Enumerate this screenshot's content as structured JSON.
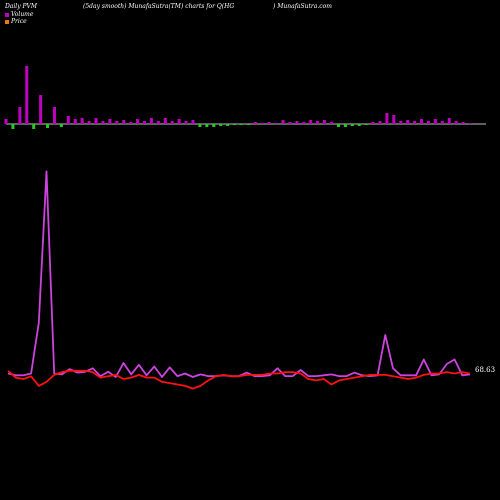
{
  "header": {
    "left": "Daily PVM",
    "middle": "(5day smooth) MunafaSutra(TM) charts for Q(HG",
    "right": ") MunafaSutra.com"
  },
  "legend": {
    "volume": "Volume",
    "price": "Price"
  },
  "colors": {
    "background": "#000000",
    "volume_up": "#c000c0",
    "volume_down": "#22cc22",
    "price_line": "#ff1111",
    "volume_line": "#cc44dd",
    "baseline": "#ffffff"
  },
  "chart_data": {
    "type": "line",
    "title": "(5day smooth) MunafaSutra(TM) charts for Q(HG",
    "last_label": "68.63",
    "volume_bars": [
      {
        "value": 5,
        "dir": "up"
      },
      {
        "value": -5,
        "dir": "down"
      },
      {
        "value": 17,
        "dir": "up"
      },
      {
        "value": 58,
        "dir": "up"
      },
      {
        "value": -5,
        "dir": "down"
      },
      {
        "value": 29,
        "dir": "up"
      },
      {
        "value": -4,
        "dir": "down"
      },
      {
        "value": 17,
        "dir": "up"
      },
      {
        "value": -3,
        "dir": "down"
      },
      {
        "value": 8,
        "dir": "up"
      },
      {
        "value": 5,
        "dir": "up"
      },
      {
        "value": 6,
        "dir": "up"
      },
      {
        "value": 3,
        "dir": "up"
      },
      {
        "value": 6,
        "dir": "up"
      },
      {
        "value": 3,
        "dir": "up"
      },
      {
        "value": 5,
        "dir": "up"
      },
      {
        "value": 3,
        "dir": "up"
      },
      {
        "value": 4,
        "dir": "up"
      },
      {
        "value": 2,
        "dir": "up"
      },
      {
        "value": 5,
        "dir": "up"
      },
      {
        "value": 3,
        "dir": "up"
      },
      {
        "value": 6,
        "dir": "up"
      },
      {
        "value": 3,
        "dir": "up"
      },
      {
        "value": 6,
        "dir": "up"
      },
      {
        "value": 3,
        "dir": "up"
      },
      {
        "value": 5,
        "dir": "up"
      },
      {
        "value": 3,
        "dir": "up"
      },
      {
        "value": 4,
        "dir": "up"
      },
      {
        "value": -3,
        "dir": "down"
      },
      {
        "value": -3,
        "dir": "down"
      },
      {
        "value": -3,
        "dir": "down"
      },
      {
        "value": -2,
        "dir": "down"
      },
      {
        "value": -2,
        "dir": "down"
      },
      {
        "value": -1,
        "dir": "down"
      },
      {
        "value": -1,
        "dir": "down"
      },
      {
        "value": -1,
        "dir": "down"
      },
      {
        "value": 2,
        "dir": "up"
      },
      {
        "value": 1,
        "dir": "up"
      },
      {
        "value": 2,
        "dir": "up"
      },
      {
        "value": 1,
        "dir": "up"
      },
      {
        "value": 4,
        "dir": "up"
      },
      {
        "value": 2,
        "dir": "up"
      },
      {
        "value": 3,
        "dir": "up"
      },
      {
        "value": 2,
        "dir": "up"
      },
      {
        "value": 4,
        "dir": "up"
      },
      {
        "value": 3,
        "dir": "up"
      },
      {
        "value": 4,
        "dir": "up"
      },
      {
        "value": 2,
        "dir": "up"
      },
      {
        "value": -3,
        "dir": "down"
      },
      {
        "value": -3,
        "dir": "down"
      },
      {
        "value": -2,
        "dir": "down"
      },
      {
        "value": -2,
        "dir": "down"
      },
      {
        "value": -1,
        "dir": "down"
      },
      {
        "value": 2,
        "dir": "up"
      },
      {
        "value": 3,
        "dir": "up"
      },
      {
        "value": 11,
        "dir": "up"
      },
      {
        "value": 9,
        "dir": "up"
      },
      {
        "value": 3,
        "dir": "up"
      },
      {
        "value": 4,
        "dir": "up"
      },
      {
        "value": 3,
        "dir": "up"
      },
      {
        "value": 5,
        "dir": "up"
      },
      {
        "value": 3,
        "dir": "up"
      },
      {
        "value": 5,
        "dir": "up"
      },
      {
        "value": 3,
        "dir": "up"
      },
      {
        "value": 6,
        "dir": "up"
      },
      {
        "value": 3,
        "dir": "up"
      },
      {
        "value": 2,
        "dir": "up"
      },
      {
        "value": 1,
        "dir": "up"
      }
    ],
    "volume_line": [
      4,
      2,
      2,
      4,
      62,
      235,
      4,
      3,
      9,
      5,
      6,
      10,
      1,
      6,
      0,
      16,
      3,
      14,
      2,
      12,
      0,
      11,
      1,
      4,
      0,
      3,
      1,
      1,
      2,
      1,
      1,
      5,
      1,
      1,
      2,
      10,
      1,
      1,
      8,
      1,
      1,
      2,
      3,
      1,
      1,
      5,
      2,
      1,
      2,
      48,
      10,
      2,
      2,
      2,
      20,
      2,
      3,
      15,
      20,
      2,
      3
    ],
    "price_line": [
      2,
      -3,
      -4,
      -2,
      -9,
      -6,
      -1,
      1,
      2,
      2,
      2,
      1,
      -3,
      -2,
      -1,
      -4,
      -3,
      -1,
      -3,
      -3,
      -6,
      -7,
      -8,
      -9,
      -11,
      -9,
      -5,
      -2,
      -1,
      -2,
      -2,
      -1,
      -1,
      -1,
      0,
      0,
      1,
      1,
      0,
      -4,
      -5,
      -4,
      -8,
      -5,
      -4,
      -3,
      -2,
      -1,
      -1,
      -1,
      -2,
      -3,
      -4,
      -3,
      -1,
      0,
      0,
      1,
      0,
      1,
      0
    ],
    "price_ylim": [
      -12,
      4
    ],
    "volume_ylim": [
      0,
      240
    ]
  }
}
